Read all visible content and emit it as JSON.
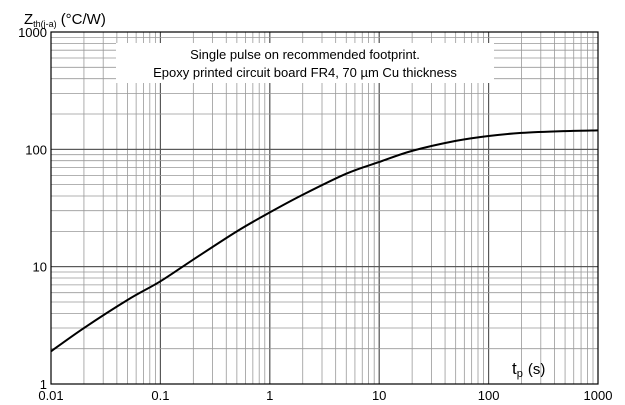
{
  "chart_data": {
    "type": "line",
    "title": "",
    "ylabel": {
      "main": "Z",
      "sub": "th(j-a)",
      "unit": "(°C/W)"
    },
    "xlabel": {
      "main": "t",
      "sub": "p",
      "unit": "(s)"
    },
    "x_scale": "log",
    "y_scale": "log",
    "xlim": [
      0.01,
      1000
    ],
    "ylim": [
      1,
      1000
    ],
    "grid": true,
    "x_ticks": [
      "0.01",
      "0.1",
      "1",
      "10",
      "100",
      "1000"
    ],
    "y_ticks": [
      "1",
      "10",
      "100",
      "1000"
    ],
    "annotation": [
      "Single pulse on recommended footprint.",
      "Epoxy printed circuit board FR4, 70 µm Cu thickness"
    ],
    "series": [
      {
        "color": "#000000",
        "x": [
          0.01,
          0.02,
          0.05,
          0.1,
          0.2,
          0.5,
          1,
          2,
          5,
          10,
          20,
          50,
          100,
          200,
          500,
          1000
        ],
        "y": [
          1.9,
          3.0,
          5.2,
          7.5,
          11.5,
          20,
          29,
          41,
          62,
          78,
          97,
          118,
          130,
          138,
          143,
          145
        ]
      }
    ]
  }
}
